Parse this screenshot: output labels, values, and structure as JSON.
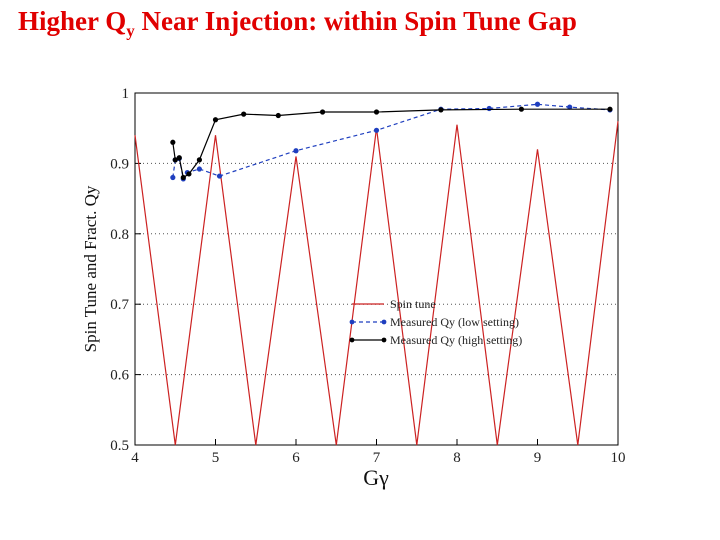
{
  "slide": {
    "title_main": "Higher Q",
    "title_sub": "y",
    "title_rest": " Near Injection: within Spin Tune Gap"
  },
  "chart_data": {
    "type": "line",
    "title": "",
    "xlabel": "Gγ",
    "ylabel": "Spin Tune and Fract. Qy",
    "xlim": [
      4,
      10
    ],
    "ylim": [
      0.5,
      1.0
    ],
    "xticks": [
      "4",
      "5",
      "6",
      "7",
      "8",
      "9",
      "10"
    ],
    "yticks": [
      "0.5",
      "0.6",
      "0.7",
      "0.8",
      "0.9",
      "1"
    ],
    "grid": "horizontal dotted",
    "legend_position": "lower-right",
    "series": [
      {
        "name": "Spin tune",
        "color": "#cc2222",
        "style": "solid",
        "marker": "none",
        "x": [
          4.0,
          4.5,
          5.0,
          5.5,
          6.0,
          6.5,
          7.0,
          7.5,
          8.0,
          8.5,
          9.0,
          9.5,
          10.0
        ],
        "y": [
          0.94,
          0.5,
          0.94,
          0.5,
          0.91,
          0.5,
          0.95,
          0.5,
          0.955,
          0.5,
          0.92,
          0.5,
          0.96
        ]
      },
      {
        "name": "Measured Qy (low setting)",
        "color": "#1f3fbf",
        "style": "dashed",
        "marker": "dot",
        "x": [
          4.47,
          4.5,
          4.55,
          4.6,
          4.65,
          4.8,
          5.05,
          6.0,
          7.0,
          7.8,
          8.4,
          9.0,
          9.4,
          9.9
        ],
        "y": [
          0.88,
          0.905,
          0.907,
          0.878,
          0.887,
          0.892,
          0.882,
          0.918,
          0.947,
          0.977,
          0.978,
          0.984,
          0.98,
          0.976
        ]
      },
      {
        "name": "Measured Qy (high setting)",
        "color": "#000000",
        "style": "solid",
        "marker": "dot",
        "x": [
          4.47,
          4.5,
          4.55,
          4.6,
          4.67,
          4.8,
          5.0,
          5.35,
          5.78,
          6.33,
          7.0,
          7.8,
          8.8,
          9.9
        ],
        "y": [
          0.93,
          0.905,
          0.908,
          0.88,
          0.885,
          0.905,
          0.962,
          0.97,
          0.968,
          0.973,
          0.973,
          0.976,
          0.977,
          0.977
        ]
      }
    ]
  }
}
